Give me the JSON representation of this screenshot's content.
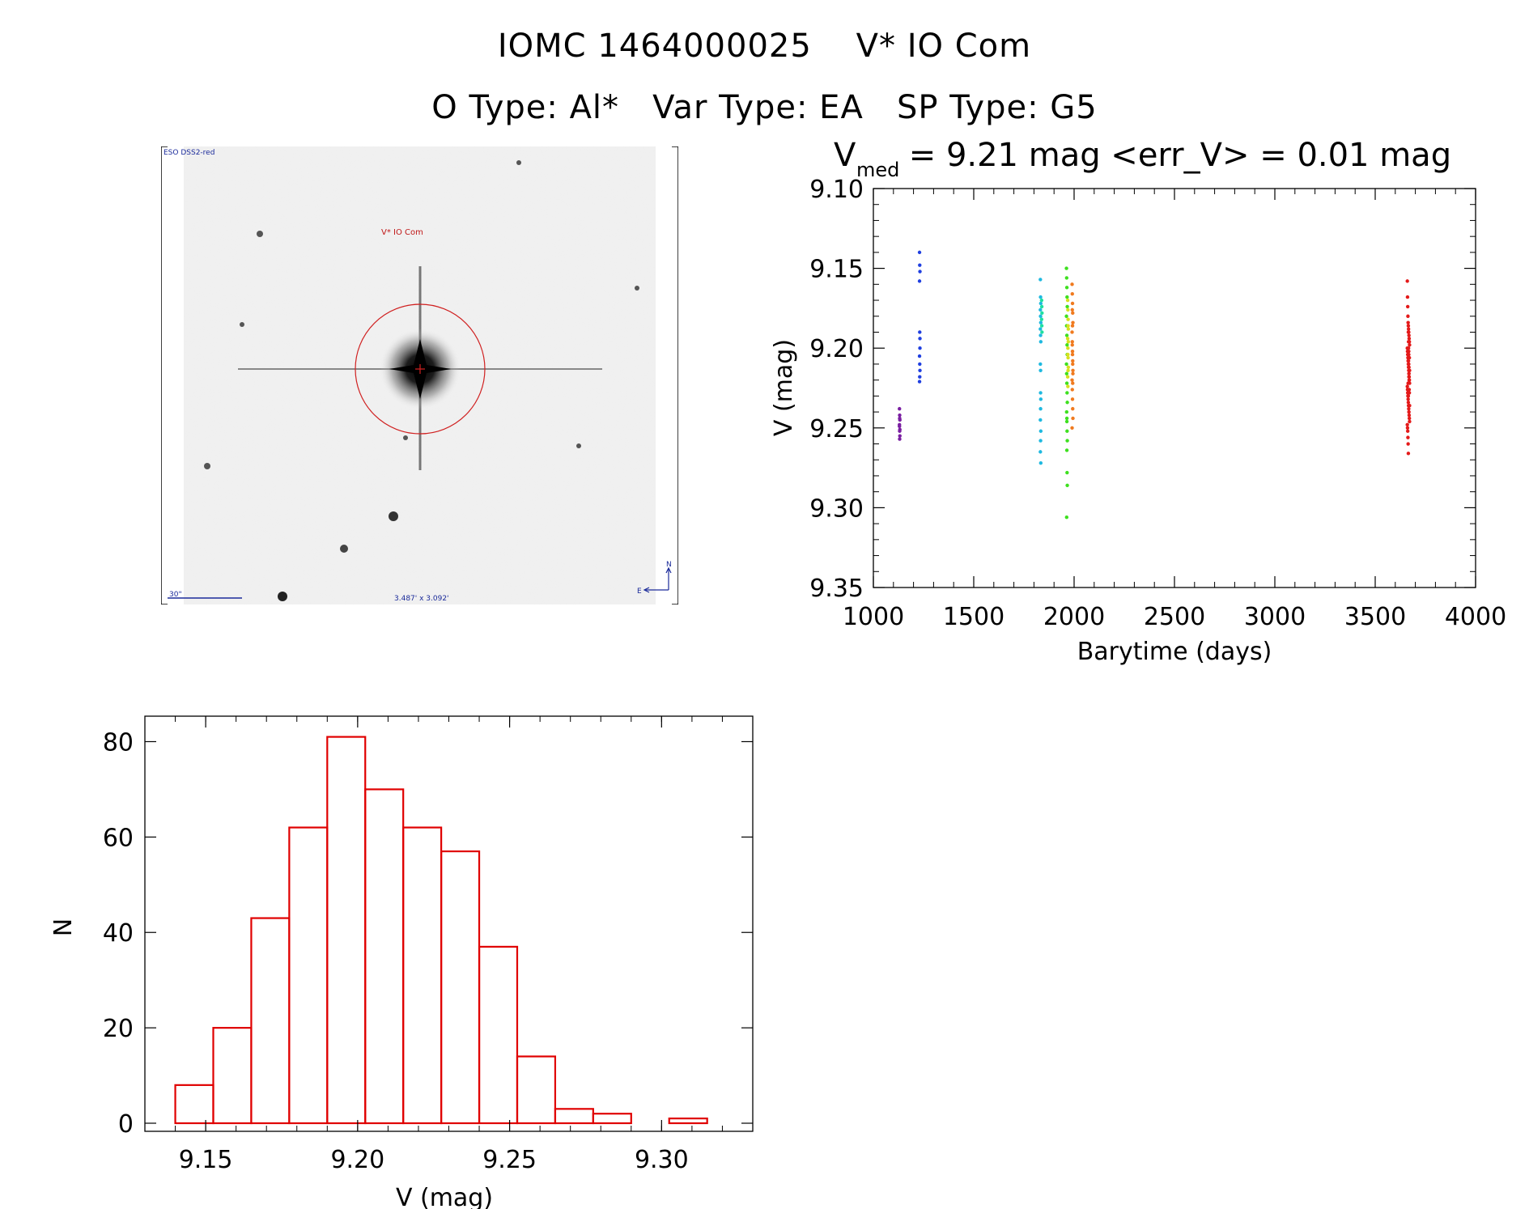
{
  "header": {
    "title": "IOMC 1464000025    V* IO Com",
    "subtitle": "O Type: Al*   Var Type: EA   SP Type: G5"
  },
  "finder": {
    "survey_label": "ESO DSS2-red",
    "target_label": "V* IO Com",
    "scale_label": "30\"",
    "fov_label": "3.487' x 3.092'",
    "north_label": "N",
    "east_label": "E"
  },
  "chart_data": [
    {
      "type": "scatter",
      "title_main": "V",
      "title_sub": "med",
      "title_rest": " = 9.21 mag <err_V> = 0.01 mag",
      "xlabel": "Barytime (days)",
      "ylabel": "V (mag)",
      "xlim": [
        1000,
        4000
      ],
      "ylim": [
        9.35,
        9.1
      ],
      "xticks": [
        "1000",
        "1500",
        "2000",
        "2500",
        "3000",
        "3500",
        "4000"
      ],
      "yticks": [
        "9.10",
        "9.15",
        "9.20",
        "9.25",
        "9.30",
        "9.35"
      ],
      "series": [
        {
          "color": "#7a1fa2",
          "x": [
            1130,
            1131,
            1132,
            1130,
            1131,
            1132,
            1130,
            1131,
            1132,
            1131
          ],
          "y": [
            9.238,
            9.242,
            9.245,
            9.249,
            9.252,
            9.255,
            9.248,
            9.244,
            9.251,
            9.257
          ]
        },
        {
          "color": "#1f3fe0",
          "x": [
            1230,
            1231,
            1232,
            1230,
            1231,
            1232,
            1230,
            1231,
            1232,
            1231,
            1230,
            1232
          ],
          "y": [
            9.14,
            9.148,
            9.152,
            9.158,
            9.19,
            9.194,
            9.205,
            9.21,
            9.214,
            9.218,
            9.221,
            9.2
          ]
        },
        {
          "color": "#1fb9e0",
          "x": [
            1832,
            1833,
            1834,
            1832,
            1833,
            1834,
            1832,
            1833,
            1834,
            1832,
            1833,
            1834,
            1833,
            1832,
            1834,
            1833,
            1832,
            1834,
            1833
          ],
          "y": [
            9.157,
            9.168,
            9.172,
            9.176,
            9.18,
            9.184,
            9.188,
            9.192,
            9.196,
            9.21,
            9.214,
            9.232,
            9.238,
            9.245,
            9.252,
            9.258,
            9.265,
            9.272,
            9.228
          ]
        },
        {
          "color": "#1fe0a0",
          "x": [
            1838,
            1839,
            1840,
            1838,
            1839,
            1840
          ],
          "y": [
            9.17,
            9.174,
            9.178,
            9.182,
            9.186,
            9.19
          ]
        },
        {
          "color": "#3ee01f",
          "x": [
            1962,
            1963,
            1964,
            1965,
            1966,
            1962,
            1963,
            1964,
            1965,
            1966,
            1962,
            1963,
            1964,
            1965,
            1966,
            1963,
            1964,
            1965,
            1966,
            1964,
            1965,
            1966,
            1963,
            1964
          ],
          "y": [
            9.15,
            9.156,
            9.162,
            9.168,
            9.174,
            9.18,
            9.186,
            9.192,
            9.198,
            9.204,
            9.21,
            9.216,
            9.222,
            9.228,
            9.234,
            9.24,
            9.246,
            9.252,
            9.258,
            9.264,
            9.278,
            9.286,
            9.306,
            9.244
          ]
        },
        {
          "color": "#d8e01f",
          "x": [
            1968,
            1969,
            1970,
            1971,
            1968,
            1969,
            1970,
            1971,
            1968,
            1969,
            1970,
            1971,
            1969,
            1970
          ],
          "y": [
            9.17,
            9.176,
            9.182,
            9.188,
            9.194,
            9.2,
            9.206,
            9.212,
            9.218,
            9.224,
            9.186,
            9.196,
            9.204,
            9.214
          ]
        },
        {
          "color": "#f07a1f",
          "x": [
            1990,
            1991,
            1992,
            1993,
            1994,
            1990,
            1991,
            1992,
            1993,
            1994,
            1990,
            1991,
            1992,
            1993,
            1994,
            1990,
            1991,
            1992,
            1993,
            1994,
            1991,
            1992,
            1993
          ],
          "y": [
            9.16,
            9.166,
            9.172,
            9.178,
            9.184,
            9.19,
            9.196,
            9.202,
            9.208,
            9.214,
            9.22,
            9.226,
            9.232,
            9.238,
            9.244,
            9.25,
            9.198,
            9.204,
            9.21,
            9.216,
            9.176,
            9.186,
            9.222
          ]
        },
        {
          "color": "#e41a1a",
          "x": [
            3660,
            3661,
            3662,
            3663,
            3664,
            3665,
            3666,
            3667,
            3668,
            3669,
            3670,
            3671,
            3660,
            3661,
            3662,
            3663,
            3664,
            3665,
            3666,
            3667,
            3668,
            3669,
            3670,
            3671,
            3660,
            3661,
            3662,
            3663,
            3664,
            3665,
            3666,
            3667,
            3668,
            3669,
            3670,
            3671,
            3660,
            3661,
            3662,
            3663,
            3664,
            3665,
            3666,
            3667,
            3668,
            3669,
            3670,
            3671,
            3665,
            3666,
            3667,
            3668,
            3669,
            3670,
            3671,
            3664,
            3665,
            3666,
            3667,
            3668
          ],
          "y": [
            9.158,
            9.168,
            9.174,
            9.18,
            9.184,
            9.186,
            9.188,
            9.19,
            9.192,
            9.194,
            9.196,
            9.198,
            9.2,
            9.202,
            9.204,
            9.206,
            9.208,
            9.21,
            9.212,
            9.214,
            9.216,
            9.218,
            9.22,
            9.222,
            9.224,
            9.226,
            9.228,
            9.23,
            9.232,
            9.234,
            9.236,
            9.238,
            9.24,
            9.242,
            9.244,
            9.246,
            9.248,
            9.25,
            9.252,
            9.256,
            9.26,
            9.266,
            9.196,
            9.204,
            9.212,
            9.22,
            9.228,
            9.236,
            9.19,
            9.2,
            9.21,
            9.218,
            9.226,
            9.206,
            9.214,
            9.222,
            9.23,
            9.208,
            9.202,
            9.216
          ]
        }
      ]
    },
    {
      "type": "bar",
      "xlabel": "V (mag)",
      "ylabel": "N",
      "xlim": [
        9.13,
        9.33
      ],
      "ylim": [
        0,
        85
      ],
      "xticks": [
        "9.15",
        "9.20",
        "9.25",
        "9.30"
      ],
      "yticks": [
        "0",
        "20",
        "40",
        "60",
        "80"
      ],
      "bin_width": 0.0125,
      "bin_start": 9.14,
      "values": [
        8,
        20,
        43,
        62,
        81,
        70,
        62,
        57,
        37,
        14,
        3,
        2,
        0,
        1
      ],
      "color": "#e00000"
    }
  ]
}
